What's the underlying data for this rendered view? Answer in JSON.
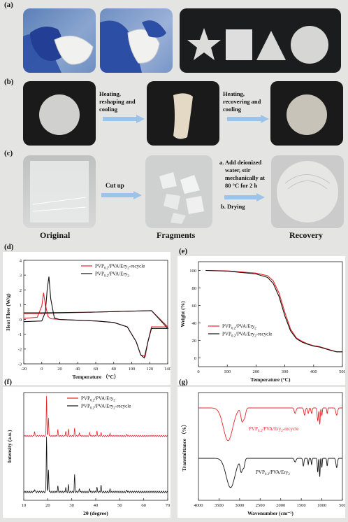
{
  "panel_labels": {
    "a": "(a)",
    "b": "(b)",
    "c": "(c)",
    "d": "(d)",
    "e": "(e)",
    "f": "(f)",
    "g": "(g)"
  },
  "panel_b": {
    "step1": [
      "Heating,",
      "reshaping and",
      "cooling"
    ],
    "step2": [
      "Heating,",
      "recovering and",
      "cooling"
    ]
  },
  "panel_c": {
    "step1": "Cut up",
    "step2": [
      "a. Add deionized",
      "water, stir",
      "mechanically at",
      "80 °C for 2 h",
      "b. Drying"
    ],
    "captions": [
      "Original",
      "Fragments",
      "Recovery"
    ]
  },
  "colors": {
    "red": "#e8242b",
    "black": "#111111"
  },
  "chart_data": [
    {
      "id": "d",
      "type": "line",
      "xlabel": "Temperature （°C）",
      "ylabel": "Heat Flow (W/g)",
      "xlim": [
        -20,
        140
      ],
      "ylim": [
        -3,
        4
      ],
      "xticks": [
        -20,
        0,
        20,
        40,
        60,
        80,
        100,
        120,
        140
      ],
      "yticks": [
        -3,
        -2,
        -1,
        0,
        1,
        2,
        3,
        4
      ],
      "legend": [
        "PVP0.2/PVA/Ery2-recycle",
        "PVP0.2/PVA/Ery2"
      ],
      "series": [
        {
          "name": "PVP0.2/PVA/Ery2-recycle",
          "color": "red",
          "x": [
            -20,
            -5,
            0,
            2,
            4,
            7,
            10,
            20,
            60,
            80,
            95,
            105,
            110,
            115,
            118,
            122,
            140,
            122,
            60,
            0,
            -20
          ],
          "y": [
            0.08,
            0.15,
            0.9,
            1.8,
            1.0,
            0.2,
            0.05,
            0,
            -0.1,
            -0.2,
            -0.5,
            -1.5,
            -2.4,
            -2.5,
            -1.5,
            -0.5,
            -0.5,
            0.6,
            0.5,
            0.4,
            0.4
          ]
        },
        {
          "name": "PVP0.2/PVA/Ery2",
          "color": "black",
          "x": [
            -20,
            0,
            4,
            6,
            8,
            10,
            14,
            20,
            60,
            80,
            95,
            105,
            110,
            114,
            118,
            122,
            140,
            122,
            60,
            0,
            -20
          ],
          "y": [
            -0.15,
            -0.1,
            0.5,
            2.0,
            2.9,
            1.4,
            0.1,
            0,
            -0.1,
            -0.2,
            -0.5,
            -1.5,
            -2.4,
            -2.6,
            -1.5,
            -0.6,
            -0.6,
            0.6,
            0.5,
            0.45,
            0.45
          ]
        }
      ]
    },
    {
      "id": "e",
      "type": "line",
      "xlabel": "Temperature (°C)",
      "ylabel": "Weight (%)",
      "xlim": [
        0,
        500
      ],
      "ylim": [
        -10,
        110
      ],
      "xticks": [
        0,
        100,
        200,
        300,
        400,
        500
      ],
      "yticks": [
        0,
        20,
        40,
        60,
        80,
        100
      ],
      "legend": [
        "PVP0.2/PVA/Ery2",
        "PVP0.2/PVA/Ery2-recycle"
      ],
      "series": [
        {
          "name": "PVP0.2/PVA/Ery2",
          "color": "red",
          "x": [
            25,
            100,
            200,
            240,
            260,
            280,
            300,
            320,
            340,
            360,
            380,
            400,
            420,
            440,
            460,
            480,
            500
          ],
          "y": [
            100,
            99.5,
            97,
            94,
            88,
            74,
            52,
            33,
            23,
            19,
            16,
            14,
            13,
            11,
            9,
            7,
            7
          ]
        },
        {
          "name": "PVP0.2/PVA/Ery2-recycle",
          "color": "black",
          "x": [
            25,
            100,
            200,
            240,
            260,
            280,
            300,
            320,
            340,
            360,
            380,
            400,
            420,
            440,
            460,
            480,
            500
          ],
          "y": [
            100,
            99.2,
            96,
            92,
            85,
            70,
            48,
            31,
            22,
            18,
            15.5,
            13.5,
            12.5,
            10.5,
            8.5,
            7,
            7
          ]
        }
      ]
    },
    {
      "id": "f",
      "type": "line",
      "xlabel": "2θ (degree)",
      "ylabel": "Intensity (a.u.)",
      "xlim": [
        10,
        70
      ],
      "xticks": [
        10,
        20,
        30,
        40,
        50,
        60,
        70
      ],
      "legend": [
        "PVP0.2/PVA/Ery2",
        "PVP0.2/PVA/Ery2-recycle"
      ],
      "series": [
        {
          "name": "PVP0.2/PVA/Ery2",
          "color": "red",
          "peaks": [
            [
              14.5,
              0.12
            ],
            [
              19.5,
              1.0
            ],
            [
              20.3,
              0.45
            ],
            [
              24.2,
              0.15
            ],
            [
              27.5,
              0.12
            ],
            [
              28.6,
              0.16
            ],
            [
              31.2,
              0.18
            ],
            [
              33.2,
              0.08
            ],
            [
              37.5,
              0.09
            ],
            [
              40.5,
              0.12
            ],
            [
              42.2,
              0.08
            ],
            [
              46.0,
              0.06
            ],
            [
              53.0,
              0.05
            ]
          ]
        },
        {
          "name": "PVP0.2/PVA/Ery2-recycle",
          "color": "black",
          "peaks": [
            [
              14.5,
              0.05
            ],
            [
              19.5,
              1.0
            ],
            [
              20.3,
              0.4
            ],
            [
              24.2,
              0.1
            ],
            [
              27.5,
              0.08
            ],
            [
              28.6,
              0.12
            ],
            [
              31.2,
              0.3
            ],
            [
              33.2,
              0.06
            ],
            [
              37.5,
              0.06
            ],
            [
              40.5,
              0.08
            ],
            [
              42.2,
              0.12
            ],
            [
              46.0,
              0.05
            ],
            [
              53.0,
              0.04
            ]
          ]
        }
      ]
    },
    {
      "id": "g",
      "type": "line",
      "xlabel": "Wavenumber (cm⁻¹)",
      "ylabel": "Transmittance （%）",
      "xlim": [
        4000,
        500
      ],
      "xticks": [
        4000,
        3500,
        3000,
        2500,
        2000,
        1500,
        1000,
        500
      ],
      "series": [
        {
          "name": "PVP0.2/PVA/Ery2-recycle",
          "color": "red",
          "bands": [
            [
              3280,
              0.9,
              160
            ],
            [
              2940,
              0.35,
              40
            ],
            [
              2880,
              0.25,
              40
            ],
            [
              1650,
              0.15,
              30
            ],
            [
              1420,
              0.2,
              25
            ],
            [
              1330,
              0.15,
              20
            ],
            [
              1250,
              0.15,
              20
            ],
            [
              1100,
              0.35,
              20
            ],
            [
              1050,
              0.45,
              15
            ],
            [
              1000,
              0.2,
              15
            ],
            [
              870,
              0.15,
              15
            ],
            [
              640,
              0.2,
              30
            ]
          ]
        },
        {
          "name": "PVP0.2/PVA/Ery2",
          "color": "black",
          "bands": [
            [
              3220,
              0.95,
              150
            ],
            [
              2960,
              0.4,
              35
            ],
            [
              2900,
              0.3,
              35
            ],
            [
              1650,
              0.12,
              30
            ],
            [
              1450,
              0.25,
              20
            ],
            [
              1330,
              0.2,
              15
            ],
            [
              1250,
              0.2,
              15
            ],
            [
              1100,
              0.45,
              15
            ],
            [
              1050,
              0.6,
              12
            ],
            [
              1000,
              0.3,
              12
            ],
            [
              870,
              0.25,
              15
            ],
            [
              640,
              0.3,
              25
            ]
          ]
        }
      ]
    }
  ]
}
